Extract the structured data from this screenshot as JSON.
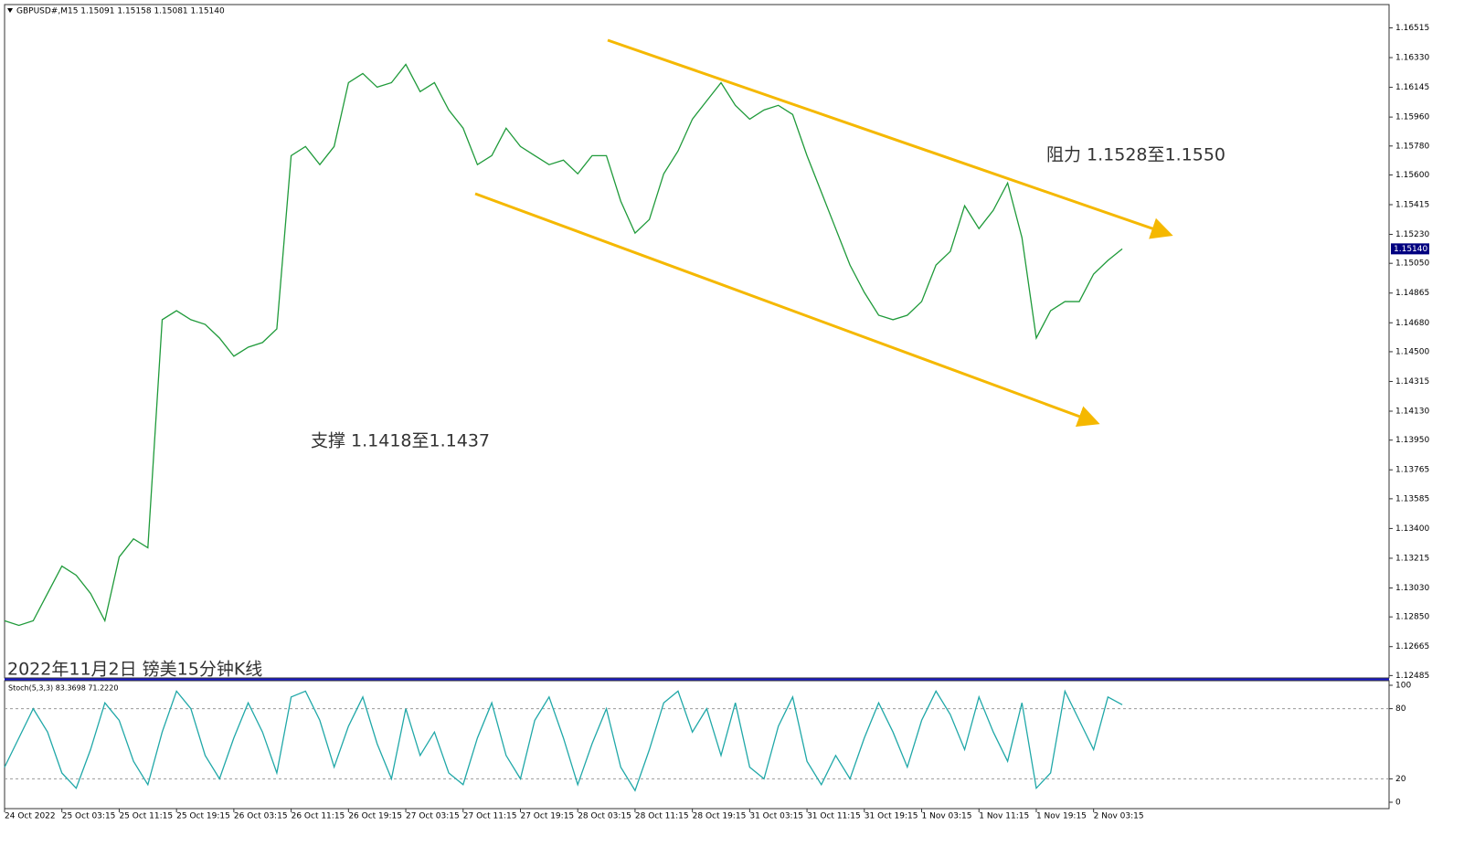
{
  "chart_data": [
    {
      "type": "line",
      "title": "GBPUSD#,M15  1.15091 1.15158 1.15081 1.15140",
      "caption": "2022年11月2日 镑美15分钟K线",
      "annotations": [
        "阻力 1.1528至1.1550",
        "支撑 1.1418至1.1437"
      ],
      "categories": [
        "24 Oct 2022",
        null,
        null,
        null,
        "25 Oct 03:15",
        null,
        null,
        null,
        "25 Oct 11:15",
        null,
        null,
        null,
        "25 Oct 19:15",
        null,
        null,
        null,
        "26 Oct 03:15",
        null,
        null,
        null,
        "26 Oct 11:15",
        null,
        null,
        null,
        "26 Oct 19:15",
        null,
        null,
        null,
        "27 Oct 03:15",
        null,
        null,
        null,
        "27 Oct 11:15",
        null,
        null,
        null,
        "27 Oct 19:15",
        null,
        null,
        null,
        "28 Oct 03:15",
        null,
        null,
        null,
        "28 Oct 11:15",
        null,
        null,
        null,
        "28 Oct 19:15",
        null,
        null,
        null,
        "31 Oct 03:15",
        null,
        null,
        null,
        "31 Oct 11:15",
        null,
        null,
        null,
        "31 Oct 19:15",
        null,
        null,
        null,
        "1 Nov 03:15",
        null,
        null,
        null,
        "1 Nov 11:15",
        null,
        null,
        null,
        "1 Nov 19:15",
        null,
        null,
        null,
        "2 Nov 03:15",
        null,
        null
      ],
      "series": [
        {
          "name": "GBPUSD#",
          "color": "#1f9a3a",
          "values": [
            1.12826,
            1.12797,
            1.12826,
            1.12996,
            1.13166,
            1.13109,
            1.12996,
            1.12826,
            1.13223,
            1.13336,
            1.1328,
            1.14699,
            1.14755,
            1.14699,
            1.1467,
            1.14585,
            1.14472,
            1.14528,
            1.14557,
            1.14642,
            1.1572,
            1.15777,
            1.15664,
            1.15777,
            1.16174,
            1.16231,
            1.16146,
            1.16174,
            1.16288,
            1.16118,
            1.16174,
            1.16004,
            1.15891,
            1.15664,
            1.1572,
            1.15891,
            1.15777,
            1.1572,
            1.15664,
            1.15692,
            1.15607,
            1.1572,
            1.1572,
            1.15437,
            1.15238,
            1.15323,
            1.15607,
            1.15749,
            1.15947,
            1.16061,
            1.16174,
            1.16033,
            1.15947,
            1.16004,
            1.16033,
            1.15976,
            1.1572,
            1.15493,
            1.15266,
            1.15039,
            1.14869,
            1.14727,
            1.14699,
            1.14727,
            1.14812,
            1.15039,
            1.15124,
            1.15408,
            1.15266,
            1.1538,
            1.1555,
            1.1521,
            1.14585,
            1.14755,
            1.14812,
            1.14812,
            1.14983,
            1.15068,
            1.1514
          ]
        }
      ],
      "last_price": {
        "value": 1.1514,
        "label": "1.15140"
      },
      "ylim": [
        1.1247,
        1.1666
      ],
      "yticks": [
        {
          "value": 1.16515,
          "label": "1.16515"
        },
        {
          "value": 1.1633,
          "label": "1.16330"
        },
        {
          "value": 1.16145,
          "label": "1.16145"
        },
        {
          "value": 1.1596,
          "label": "1.15960"
        },
        {
          "value": 1.1578,
          "label": "1.15780"
        },
        {
          "value": 1.156,
          "label": "1.15600"
        },
        {
          "value": 1.15415,
          "label": "1.15415"
        },
        {
          "value": 1.1523,
          "label": "1.15230"
        },
        {
          "value": 1.1505,
          "label": "1.15050"
        },
        {
          "value": 1.14865,
          "label": "1.14865"
        },
        {
          "value": 1.1468,
          "label": "1.14680"
        },
        {
          "value": 1.145,
          "label": "1.14500"
        },
        {
          "value": 1.14315,
          "label": "1.14315"
        },
        {
          "value": 1.1413,
          "label": "1.14130"
        },
        {
          "value": 1.1395,
          "label": "1.13950"
        },
        {
          "value": 1.13765,
          "label": "1.13765"
        },
        {
          "value": 1.13585,
          "label": "1.13585"
        },
        {
          "value": 1.134,
          "label": "1.13400"
        },
        {
          "value": 1.13215,
          "label": "1.13215"
        },
        {
          "value": 1.1303,
          "label": "1.13030"
        },
        {
          "value": 1.1285,
          "label": "1.12850"
        },
        {
          "value": 1.12665,
          "label": "1.12665"
        },
        {
          "value": 1.12485,
          "label": "1.12485"
        }
      ]
    },
    {
      "type": "line",
      "title": "Stoch(5,3,3) 83.3698 71.2220",
      "series": [
        {
          "name": "Stoch(5,3,3)",
          "color": "#20a8a8",
          "values": [
            30,
            55,
            80,
            60,
            25,
            12,
            45,
            85,
            70,
            35,
            15,
            60,
            95,
            80,
            40,
            20,
            55,
            85,
            60,
            25,
            90,
            95,
            70,
            30,
            65,
            90,
            50,
            20,
            80,
            40,
            60,
            25,
            15,
            55,
            85,
            40,
            20,
            70,
            90,
            55,
            15,
            50,
            80,
            30,
            10,
            45,
            85,
            95,
            60,
            80,
            40,
            85,
            30,
            20,
            65,
            90,
            35,
            15,
            40,
            20,
            55,
            85,
            60,
            30,
            70,
            95,
            75,
            45,
            90,
            60,
            35,
            85,
            12,
            25,
            95,
            70,
            45,
            90,
            83.3698
          ]
        }
      ],
      "ylim": [
        0,
        100
      ],
      "yticks": [
        0,
        20,
        80,
        100
      ]
    }
  ]
}
